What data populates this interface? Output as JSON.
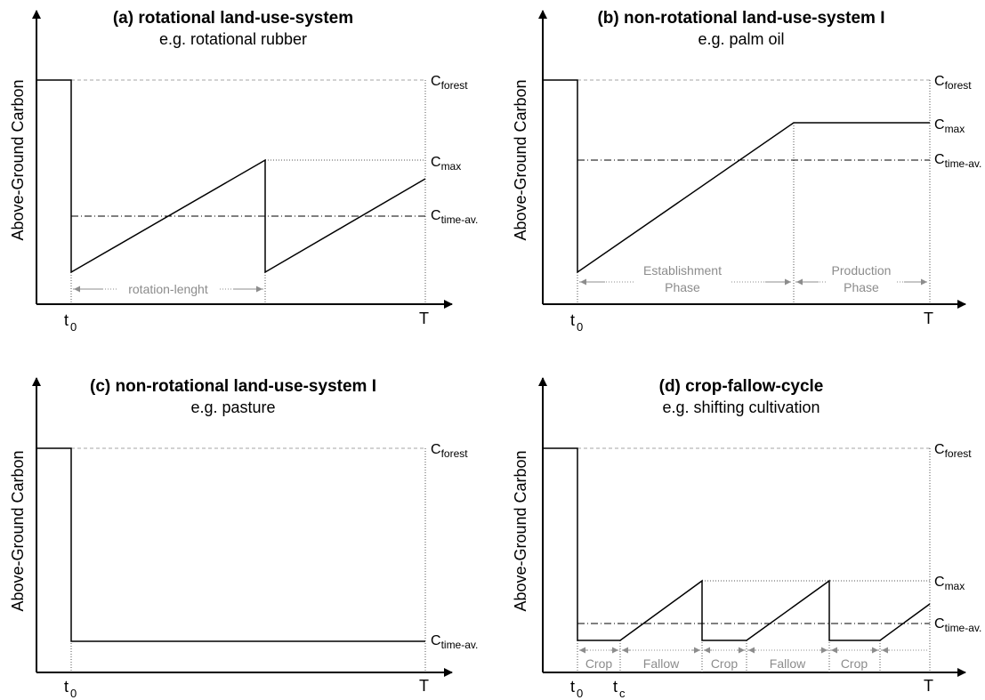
{
  "panels": {
    "a": {
      "title": "(a) rotational land-use-system",
      "subtitle": "e.g. rotational rubber",
      "ylabel": "Above-Ground Carbon",
      "c_forest": {
        "main": "C",
        "sub": "forest"
      },
      "c_max": {
        "main": "C",
        "sub": "max"
      },
      "c_time_av": {
        "main": "C",
        "sub": "time-av."
      },
      "t0": {
        "main": "t",
        "sub": "0"
      },
      "T": "T",
      "span_label": "rotation-lenght"
    },
    "b": {
      "title": "(b) non-rotational land-use-system I",
      "subtitle": "e.g. palm oil",
      "ylabel": "Above-Ground Carbon",
      "c_forest": {
        "main": "C",
        "sub": "forest"
      },
      "c_max": {
        "main": "C",
        "sub": "max"
      },
      "c_time_av": {
        "main": "C",
        "sub": "time-av."
      },
      "t0": {
        "main": "t",
        "sub": "0"
      },
      "T": "T",
      "phase1": [
        "Establishment",
        "Phase"
      ],
      "phase2": [
        "Production",
        "Phase"
      ]
    },
    "c": {
      "title": "(c) non-rotational land-use-system I",
      "subtitle": "e.g. pasture",
      "ylabel": "Above-Ground Carbon",
      "c_forest": {
        "main": "C",
        "sub": "forest"
      },
      "c_time_av": {
        "main": "C",
        "sub": "time-av."
      },
      "t0": {
        "main": "t",
        "sub": "0"
      },
      "T": "T"
    },
    "d": {
      "title": "(d) crop-fallow-cycle",
      "subtitle": "e.g. shifting cultivation",
      "ylabel": "Above-Ground Carbon",
      "c_forest": {
        "main": "C",
        "sub": "forest"
      },
      "c_max": {
        "main": "C",
        "sub": "max"
      },
      "c_time_av": {
        "main": "C",
        "sub": "time-av."
      },
      "t0": {
        "main": "t",
        "sub": "0"
      },
      "tc": {
        "main": "t",
        "sub": "c"
      },
      "T": "T",
      "segments": [
        "Crop",
        "Fallow",
        "Crop",
        "Fallow",
        "Crop"
      ]
    }
  },
  "colors": {
    "line": "#000000",
    "forest_line": "#a6a6a6",
    "guide": "#555555",
    "span_arrow": "#8c8c8c",
    "span_text": "#8c8c8c"
  }
}
